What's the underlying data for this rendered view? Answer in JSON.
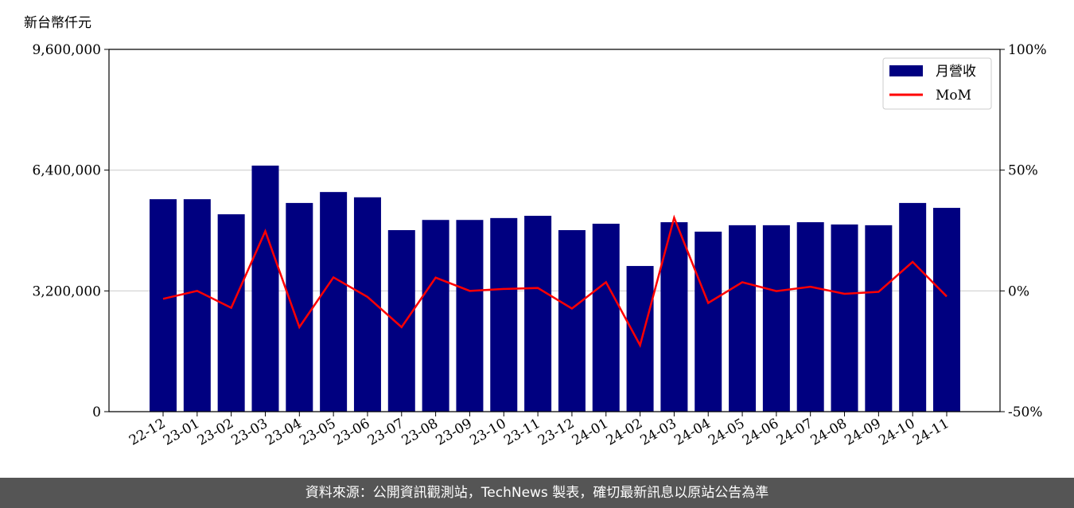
{
  "chart_data": {
    "type": "bar",
    "y_label": "新台幣仟元",
    "categories": [
      "22-12",
      "23-01",
      "23-02",
      "23-03",
      "23-04",
      "23-05",
      "23-06",
      "23-07",
      "23-08",
      "23-09",
      "23-10",
      "23-11",
      "23-12",
      "24-01",
      "24-02",
      "24-03",
      "24-04",
      "24-05",
      "24-06",
      "24-07",
      "24-08",
      "24-09",
      "24-10",
      "24-11"
    ],
    "series": [
      {
        "name": "月營收",
        "color": "#000080",
        "type": "bar",
        "axis": "y",
        "values": [
          5630000,
          5630000,
          5230000,
          6520000,
          5530000,
          5820000,
          5680000,
          4810000,
          5080000,
          5080000,
          5130000,
          5190000,
          4810000,
          4980000,
          3860000,
          5020000,
          4770000,
          4940000,
          4940000,
          5020000,
          4960000,
          4940000,
          5530000,
          5400000
        ]
      },
      {
        "name": "MoM",
        "color": "#ff0000",
        "type": "line",
        "axis": "y2",
        "values": [
          -3.3,
          0,
          -7,
          24.7,
          -15,
          5.6,
          -2.5,
          -15,
          5.5,
          0,
          0.8,
          1.2,
          -7.3,
          3.6,
          -22.5,
          30.3,
          -5,
          3.6,
          -0.1,
          1.7,
          -1.2,
          -0.4,
          12,
          -2.3
        ]
      }
    ],
    "ylim": [
      0,
      9600000
    ],
    "yticks": [
      {
        "value": 0,
        "label": "0"
      },
      {
        "value": 3200000,
        "label": "3,200,000"
      },
      {
        "value": 6400000,
        "label": "6,400,000"
      },
      {
        "value": 9600000,
        "label": "9,600,000"
      }
    ],
    "y2lim": [
      -50,
      100
    ],
    "y2ticks": [
      {
        "value": -50,
        "label": "-50%"
      },
      {
        "value": 0,
        "label": "0%"
      },
      {
        "value": 50,
        "label": "50%"
      },
      {
        "value": 100,
        "label": "100%"
      }
    ],
    "grid": true,
    "legend": "upper right"
  },
  "footer": "資料來源：公開資訊觀測站，TechNews 製表，確切最新訊息以原站公告為準"
}
